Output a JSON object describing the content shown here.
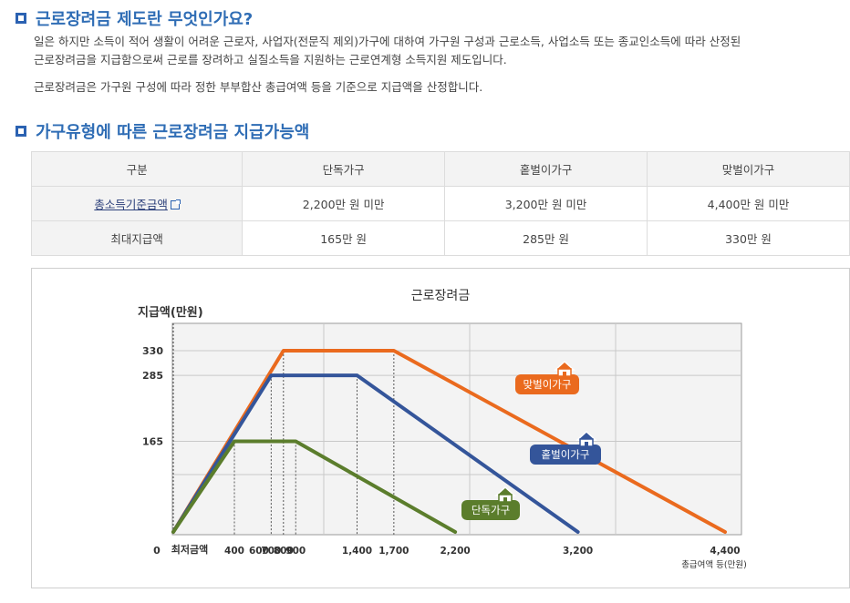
{
  "section1": {
    "title": "근로장려금 제도란 무엇인가요?",
    "para1_line1": "일은 하지만 소득이 적어 생활이 어려운 근로자, 사업자(전문직 제외)가구에 대하여 가구원 구성과 근로소득, 사업소득 또는 종교인소득에 따라 산정된",
    "para1_line2": "근로장려금을 지급함으로써 근로를 장려하고 실질소득을 지원하는 근로연계형 소득지원 제도입니다.",
    "para2": "근로장려금은 가구원 구성에 따라 정한 부부합산 총급여액 등을 기준으로 지급액을 산정합니다."
  },
  "section2": {
    "title": "가구유형에 따른 근로장려금 지급가능액"
  },
  "table": {
    "headers": [
      "구분",
      "단독가구",
      "홑벌이가구",
      "맞벌이가구"
    ],
    "rows": [
      {
        "label": "총소득기준금액",
        "values": [
          "2,200만 원 미만",
          "3,200만 원 미만",
          "4,400만 원 미만"
        ]
      },
      {
        "label": "최대지급액",
        "values": [
          "165만 원",
          "285만 원",
          "330만 원"
        ]
      }
    ]
  },
  "chart_data": {
    "type": "line",
    "title": "근로장려금",
    "ylabel": "지급액(만원)",
    "xlabel": "총급여액 등(만원)",
    "origin_label": "0",
    "min_label": "최저금액",
    "x_ticks": [
      400,
      600,
      700,
      800,
      900,
      1400,
      1700,
      2200,
      3200,
      4400
    ],
    "x_tick_labels": [
      "400",
      "600",
      "700",
      "800",
      "900",
      "1,400",
      "1,700",
      "2,200",
      "3,200",
      "4,400"
    ],
    "y_ticks": [
      165,
      285,
      330
    ],
    "y_tick_labels": [
      "165",
      "285",
      "330"
    ],
    "xlim": [
      0,
      4400
    ],
    "ylim": [
      0,
      330
    ],
    "series": [
      {
        "name": "맞벌이가구",
        "color": "#ea6a1e",
        "x": [
          0,
          800,
          1700,
          4400
        ],
        "y": [
          0,
          330,
          330,
          0
        ]
      },
      {
        "name": "홑벌이가구",
        "color": "#34559a",
        "x": [
          0,
          700,
          1400,
          3200
        ],
        "y": [
          0,
          285,
          285,
          0
        ]
      },
      {
        "name": "단독가구",
        "color": "#5b7d2c",
        "x": [
          0,
          400,
          900,
          2200
        ],
        "y": [
          0,
          165,
          165,
          0
        ]
      }
    ],
    "legend_placement": "on-line labels with house icons",
    "grid": true
  }
}
